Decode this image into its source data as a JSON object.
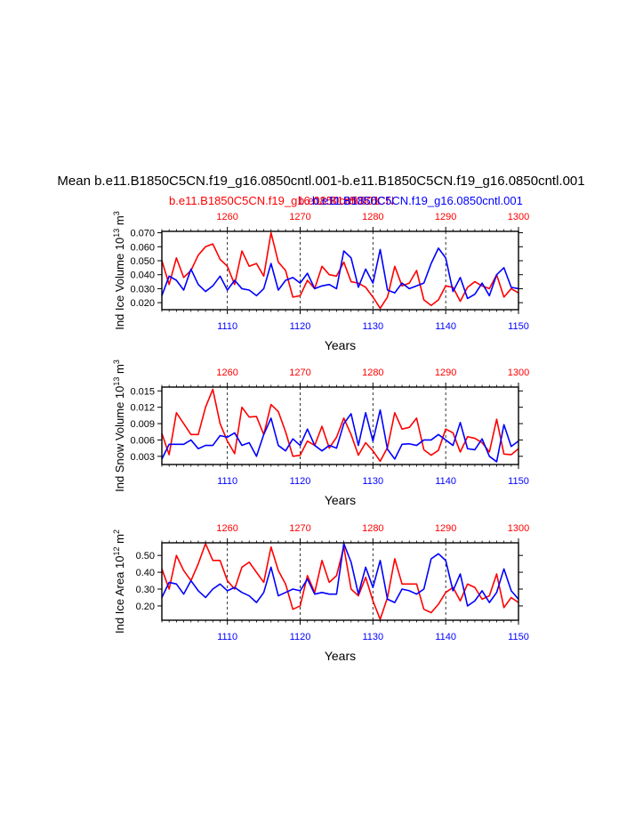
{
  "title": "Mean b.e11.B1850C5CN.f19_g16.0850cntl.001-b.e11.B1850C5CN.f19_g16.0850cntl.001",
  "subtitle_red": "b.e11.B1850C5CN.f19_g16.0850cntl.001",
  "subtitle_overlap": "b.e11.B1850C5CN",
  "subtitle_blue": "b.e11.B1850C5CN.f19_g16.0850cntl.001",
  "colors": {
    "red": "#ff0000",
    "blue": "#0000ff",
    "black": "#000000"
  },
  "chart_data": [
    {
      "type": "line",
      "ylabel": "Ind Ice Volume 10",
      "ylabel_sup": "13",
      "ylabel_unit": " m",
      "ylabel_unit_sup": "3",
      "xlabel": "Years",
      "ylim": [
        0.015,
        0.071
      ],
      "yticks": [
        0.02,
        0.03,
        0.04,
        0.05,
        0.06,
        0.07
      ],
      "ytick_labels": [
        "0.020",
        "0.030",
        "0.040",
        "0.050",
        "0.060",
        "0.070"
      ],
      "bottom_axis": {
        "range": [
          1101,
          1150
        ],
        "ticks": [
          1110,
          1120,
          1130,
          1140,
          1150
        ],
        "labels": [
          "1110",
          "1120",
          "1130",
          "1140",
          "1150"
        ]
      },
      "top_axis": {
        "range": [
          1251,
          1300
        ],
        "ticks": [
          1260,
          1270,
          1280,
          1290,
          1300
        ],
        "labels": [
          "1260",
          "1270",
          "1280",
          "1290",
          "1300"
        ]
      },
      "series": [
        {
          "name": "red",
          "color": "#ff0000",
          "values": [
            0.05,
            0.033,
            0.052,
            0.038,
            0.043,
            0.054,
            0.06,
            0.062,
            0.051,
            0.046,
            0.033,
            0.057,
            0.046,
            0.048,
            0.039,
            0.07,
            0.049,
            0.043,
            0.024,
            0.025,
            0.036,
            0.03,
            0.046,
            0.04,
            0.039,
            0.049,
            0.035,
            0.034,
            0.031,
            0.024,
            0.016,
            0.024,
            0.046,
            0.032,
            0.034,
            0.043,
            0.022,
            0.018,
            0.022,
            0.032,
            0.031,
            0.021,
            0.031,
            0.035,
            0.032,
            0.03,
            0.04,
            0.024,
            0.03,
            0.027
          ]
        },
        {
          "name": "blue",
          "color": "#0000ff",
          "values": [
            0.025,
            0.039,
            0.036,
            0.029,
            0.044,
            0.033,
            0.028,
            0.032,
            0.039,
            0.029,
            0.036,
            0.03,
            0.029,
            0.025,
            0.03,
            0.048,
            0.029,
            0.036,
            0.038,
            0.034,
            0.041,
            0.03,
            0.032,
            0.033,
            0.03,
            0.057,
            0.052,
            0.031,
            0.044,
            0.034,
            0.058,
            0.029,
            0.027,
            0.034,
            0.03,
            0.032,
            0.034,
            0.048,
            0.059,
            0.052,
            0.028,
            0.038,
            0.023,
            0.026,
            0.034,
            0.025,
            0.04,
            0.045,
            0.031,
            0.03
          ]
        }
      ]
    },
    {
      "type": "line",
      "ylabel": "Ind Snow Volume 10",
      "ylabel_sup": "13",
      "ylabel_unit": " m",
      "ylabel_unit_sup": "3",
      "xlabel": "Years",
      "ylim": [
        0.0015,
        0.0157
      ],
      "yticks": [
        0.003,
        0.006,
        0.009,
        0.012,
        0.015
      ],
      "ytick_labels": [
        "0.003",
        "0.006",
        "0.009",
        "0.012",
        "0.015"
      ],
      "bottom_axis": {
        "range": [
          1101,
          1150
        ],
        "ticks": [
          1110,
          1120,
          1130,
          1140,
          1150
        ],
        "labels": [
          "1110",
          "1120",
          "1130",
          "1140",
          "1150"
        ]
      },
      "top_axis": {
        "range": [
          1251,
          1300
        ],
        "ticks": [
          1260,
          1270,
          1280,
          1290,
          1300
        ],
        "labels": [
          "1260",
          "1270",
          "1280",
          "1290",
          "1300"
        ]
      },
      "series": [
        {
          "name": "red",
          "color": "#ff0000",
          "values": [
            0.0072,
            0.0033,
            0.011,
            0.009,
            0.007,
            0.007,
            0.012,
            0.0153,
            0.009,
            0.0058,
            0.0035,
            0.012,
            0.0102,
            0.0103,
            0.007,
            0.0125,
            0.0112,
            0.0075,
            0.003,
            0.0032,
            0.0058,
            0.005,
            0.0085,
            0.0045,
            0.0065,
            0.01,
            0.007,
            0.0032,
            0.0055,
            0.004,
            0.0021,
            0.0046,
            0.011,
            0.008,
            0.0083,
            0.01,
            0.0042,
            0.0032,
            0.0041,
            0.008,
            0.0073,
            0.0038,
            0.0066,
            0.0063,
            0.0055,
            0.0038,
            0.0098,
            0.0034,
            0.0033,
            0.0044
          ]
        },
        {
          "name": "blue",
          "color": "#0000ff",
          "values": [
            0.0025,
            0.0052,
            0.0052,
            0.0052,
            0.006,
            0.0044,
            0.005,
            0.005,
            0.0068,
            0.0065,
            0.0073,
            0.005,
            0.0055,
            0.003,
            0.007,
            0.01,
            0.005,
            0.004,
            0.0062,
            0.005,
            0.008,
            0.005,
            0.004,
            0.005,
            0.0045,
            0.009,
            0.0108,
            0.005,
            0.011,
            0.0058,
            0.0115,
            0.0043,
            0.0025,
            0.0052,
            0.0053,
            0.005,
            0.006,
            0.006,
            0.007,
            0.006,
            0.005,
            0.0092,
            0.0044,
            0.0042,
            0.0062,
            0.003,
            0.002,
            0.0088,
            0.0048,
            0.0058
          ]
        }
      ]
    },
    {
      "type": "line",
      "ylabel": "Ind Ice Area 10",
      "ylabel_sup": "12",
      "ylabel_unit": " m",
      "ylabel_unit_sup": "2",
      "xlabel": "Years",
      "ylim": [
        0.115,
        0.575
      ],
      "yticks": [
        0.2,
        0.3,
        0.4,
        0.5
      ],
      "ytick_labels": [
        "0.20",
        "0.30",
        "0.40",
        "0.50"
      ],
      "bottom_axis": {
        "range": [
          1101,
          1150
        ],
        "ticks": [
          1110,
          1120,
          1130,
          1140,
          1150
        ],
        "labels": [
          "1110",
          "1120",
          "1130",
          "1140",
          "1150"
        ]
      },
      "top_axis": {
        "range": [
          1251,
          1300
        ],
        "ticks": [
          1260,
          1270,
          1280,
          1290,
          1300
        ],
        "labels": [
          "1260",
          "1270",
          "1280",
          "1290",
          "1300"
        ]
      },
      "series": [
        {
          "name": "red",
          "color": "#ff0000",
          "values": [
            0.42,
            0.3,
            0.5,
            0.41,
            0.35,
            0.45,
            0.57,
            0.47,
            0.47,
            0.35,
            0.3,
            0.43,
            0.46,
            0.4,
            0.34,
            0.55,
            0.41,
            0.33,
            0.18,
            0.2,
            0.38,
            0.28,
            0.47,
            0.34,
            0.38,
            0.55,
            0.3,
            0.26,
            0.37,
            0.23,
            0.12,
            0.25,
            0.48,
            0.33,
            0.33,
            0.33,
            0.18,
            0.16,
            0.21,
            0.28,
            0.31,
            0.23,
            0.33,
            0.31,
            0.24,
            0.26,
            0.39,
            0.19,
            0.25,
            0.22
          ]
        },
        {
          "name": "blue",
          "color": "#0000ff",
          "values": [
            0.25,
            0.34,
            0.33,
            0.27,
            0.35,
            0.29,
            0.25,
            0.3,
            0.33,
            0.29,
            0.31,
            0.28,
            0.26,
            0.22,
            0.28,
            0.43,
            0.26,
            0.28,
            0.3,
            0.29,
            0.36,
            0.27,
            0.28,
            0.27,
            0.27,
            0.57,
            0.46,
            0.27,
            0.43,
            0.31,
            0.47,
            0.24,
            0.22,
            0.3,
            0.29,
            0.27,
            0.3,
            0.48,
            0.51,
            0.47,
            0.29,
            0.39,
            0.2,
            0.23,
            0.29,
            0.22,
            0.28,
            0.42,
            0.29,
            0.24
          ]
        }
      ]
    }
  ]
}
